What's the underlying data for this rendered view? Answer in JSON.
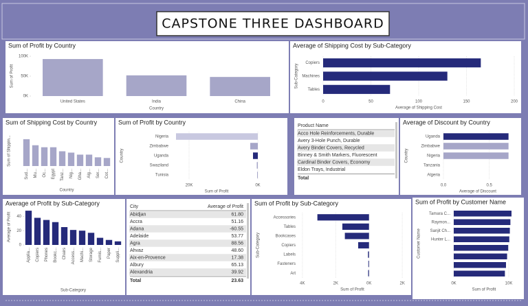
{
  "title": "CAPSTONE THREE DASHBOARD",
  "chart_data": [
    {
      "type": "bar",
      "title": "Sum of Profit by Country",
      "categories": [
        "United States",
        "India",
        "China"
      ],
      "values": [
        93000,
        52000,
        48000
      ],
      "ylim": [
        0,
        100000
      ],
      "yticks": [
        {
          "value": 0,
          "label": "0K"
        },
        {
          "value": 50000,
          "label": "50K"
        },
        {
          "value": 100000,
          "label": "100K"
        }
      ],
      "x_label": "Country",
      "y_label": "Sum of Profit",
      "color": "#a6a6c8"
    },
    {
      "type": "hbar",
      "title": "Average of Shipping Cost by Sub-Category",
      "categories": [
        "Copiers",
        "Machines",
        "Tables"
      ],
      "values": [
        165,
        130,
        70
      ],
      "xlim": [
        0,
        200
      ],
      "xticks": [
        0,
        50,
        100,
        150,
        200
      ],
      "x_label": "Average of Shipping Cost",
      "y_label": "Sub-Category",
      "color": "#252a7a"
    },
    {
      "type": "bar",
      "title": "Sum of Shipping Cost by Country",
      "categories": [
        "Sud...",
        "Mu...",
        "Oc...",
        "Egypt",
        "Tanz...",
        "Nig...",
        "Gha...",
        "Alg...",
        "Ser...",
        "Cot..."
      ],
      "values": [
        40,
        31,
        28,
        28,
        22,
        20,
        17,
        17,
        13,
        12
      ],
      "ylim": [
        0,
        45
      ],
      "yticks": [],
      "x_label": "Country",
      "y_label": "Sum of Shippin...",
      "color": "#a6a6c8"
    },
    {
      "type": "hbar",
      "title": "Sum of Profit by Country",
      "categories": [
        "Nigeria",
        "Zimbabwe",
        "Uganda",
        "Swaziland",
        "Tunisia"
      ],
      "values": [
        -23800,
        -2200,
        -1400,
        -300,
        -200
      ],
      "xlim": [
        -25000,
        1000
      ],
      "xticks": [
        {
          "value": -20000,
          "label": "20K"
        },
        {
          "value": 0,
          "label": "0K"
        }
      ],
      "x_label": "Sum of Profit",
      "y_label": "Country",
      "color": "#a6a6c8",
      "colors": [
        "#c8c8e0",
        "#a6a6c8",
        "#252a7a",
        "#a6a6c8",
        "#a6a6c8"
      ]
    },
    {
      "type": "table",
      "columns": [
        "Product Name"
      ],
      "rows": [
        [
          "Acco Hole Reinforcements, Durable"
        ],
        [
          "Avery 3-Hole Punch, Durable"
        ],
        [
          "Avery Binder Covers, Recycled"
        ],
        [
          "Binney & Smith Markers, Fluorescent"
        ],
        [
          "Cardinal Binder Covers, Economy"
        ],
        [
          "Eldon Trays, Industrial"
        ]
      ],
      "total": [
        "Total"
      ]
    },
    {
      "type": "hbar",
      "title": "Average of Discount by Country",
      "categories": [
        "Uganda",
        "Zimbabwe",
        "Nigeria",
        "Tanzania",
        "Algeria"
      ],
      "values": [
        0.71,
        0.71,
        0.71,
        0,
        0
      ],
      "xlim": [
        0,
        0.75
      ],
      "xticks": [
        {
          "value": 0,
          "label": "0.0"
        },
        0.5
      ],
      "x_label": "Average of Discount",
      "y_label": "Country",
      "color": "#a6a6c8",
      "colors": [
        "#252a7a",
        "#a6a6c8",
        "#a6a6c8",
        "#a6a6c8",
        "#a6a6c8"
      ]
    },
    {
      "type": "bar",
      "title": "Average of Profit by Sub-Category",
      "categories": [
        "Applia...",
        "Copiers",
        "Phones",
        "Bookc...",
        "Chairs",
        "Access...",
        "Machi...",
        "Storage",
        "Furnis...",
        "Paper",
        "Suppli..."
      ],
      "values": [
        48,
        38,
        35,
        32,
        25,
        21,
        20,
        17,
        10,
        7,
        5
      ],
      "ylim": [
        0,
        50
      ],
      "yticks": [
        0,
        20,
        40
      ],
      "x_label": "Sub-Category",
      "y_label": "Average of Profit",
      "color": "#252a7a"
    },
    {
      "type": "table",
      "columns": [
        "City",
        "Average of Profit"
      ],
      "rows": [
        [
          "Abidjan",
          "61.80"
        ],
        [
          "Accra",
          "51.16"
        ],
        [
          "Adana",
          "-60.55"
        ],
        [
          "Adelaide",
          "53.77"
        ],
        [
          "Agra",
          "88.56"
        ],
        [
          "Ahvaz",
          "48.60"
        ],
        [
          "Aix-en-Provence",
          "17.38"
        ],
        [
          "Albury",
          "65.13"
        ],
        [
          "Alexandria",
          "39.92"
        ]
      ],
      "total": [
        "Total",
        "23.63"
      ]
    },
    {
      "type": "hbar",
      "title": "Sum of Profit by Sub-Category",
      "categories": [
        "Accessories",
        "Tables",
        "Bookcases",
        "Copiers",
        "Labels",
        "Fasteners",
        "Art"
      ],
      "values": [
        -3100,
        -1600,
        -1450,
        -650,
        -60,
        -40,
        -50
      ],
      "xlim": [
        -4200,
        2200
      ],
      "xticks": [
        {
          "value": -4000,
          "label": "4K"
        },
        {
          "value": -2000,
          "label": "2K"
        },
        {
          "value": 0,
          "label": "0K"
        },
        {
          "value": 2000,
          "label": "2K"
        }
      ],
      "x_label": "Sum of Profit",
      "y_label": "Sub-Category",
      "color": "#252a7a"
    },
    {
      "type": "hbar",
      "title": "Sum of Profit by Customer Name",
      "categories": [
        "Tamara C...",
        "Raymon...",
        "Sanjit Ch...",
        "Hunter L...",
        null,
        null,
        null,
        null
      ],
      "values": [
        10500,
        10300,
        10200,
        10100,
        9900,
        9700,
        9500,
        9300
      ],
      "xlim": [
        0,
        11000
      ],
      "xticks": [
        {
          "value": 0,
          "label": "0K"
        },
        {
          "value": 10000,
          "label": "10K"
        }
      ],
      "x_label": "Sum of Profit",
      "y_label": "Customer Name",
      "color": "#252a7a"
    }
  ]
}
